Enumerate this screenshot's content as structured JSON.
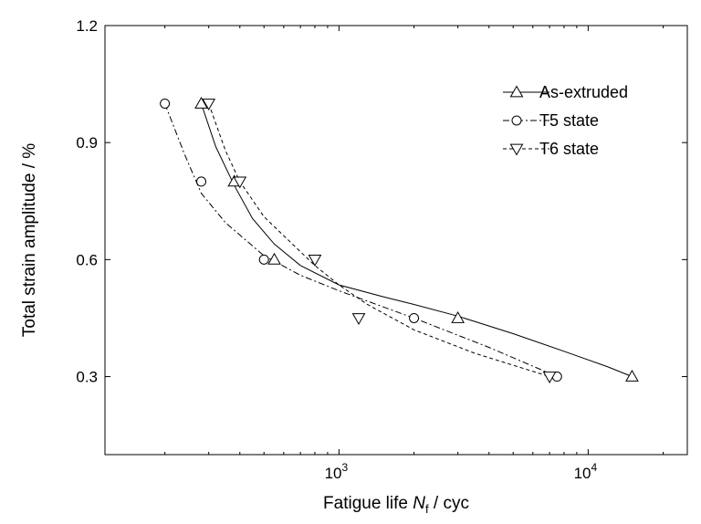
{
  "chart_data": {
    "type": "scatter",
    "title": "",
    "xlabel": {
      "prefix": "Fatigue life ",
      "symbol": "N",
      "subscript": "f",
      "suffix": " / cyc"
    },
    "ylabel": "Total strain amplitude / %",
    "x_scale": "log",
    "xlim": [
      115,
      25000
    ],
    "ylim": [
      0.1,
      1.2
    ],
    "x_ticks": [
      {
        "value": 1000,
        "base": "10",
        "exp": "3"
      },
      {
        "value": 10000,
        "base": "10",
        "exp": "4"
      }
    ],
    "y_ticks": [
      {
        "value": 0.3,
        "label": "0.3"
      },
      {
        "value": 0.6,
        "label": "0.6"
      },
      {
        "value": 0.9,
        "label": "0.9"
      },
      {
        "value": 1.2,
        "label": "1.2"
      }
    ],
    "grid": false,
    "legend_position": "top-right",
    "series": [
      {
        "name": "As-extruded",
        "marker": "triangle-up",
        "line": "solid",
        "x": [
          280,
          380,
          550,
          3000,
          15000
        ],
        "y": [
          1.0,
          0.8,
          0.6,
          0.45,
          0.3
        ],
        "fit_x": [
          280,
          320,
          380,
          450,
          550,
          700,
          1000,
          1500,
          2000,
          3000,
          5000,
          8000,
          12000,
          15000
        ],
        "fit_y": [
          1.0,
          0.89,
          0.79,
          0.705,
          0.64,
          0.585,
          0.535,
          0.505,
          0.485,
          0.455,
          0.41,
          0.365,
          0.325,
          0.3
        ]
      },
      {
        "name": "T5 state",
        "marker": "circle",
        "line": "dash-dot",
        "x": [
          200,
          280,
          500,
          2000,
          7500
        ],
        "y": [
          1.0,
          0.8,
          0.6,
          0.45,
          0.3
        ],
        "fit_x": [
          200,
          240,
          280,
          350,
          450,
          500,
          700,
          1000,
          2000,
          4000,
          7500
        ],
        "fit_y": [
          1.0,
          0.87,
          0.77,
          0.695,
          0.635,
          0.61,
          0.56,
          0.52,
          0.45,
          0.375,
          0.3
        ]
      },
      {
        "name": "T6 state",
        "marker": "triangle-down",
        "line": "dashed",
        "x": [
          300,
          400,
          800,
          1200,
          7000
        ],
        "y": [
          1.0,
          0.8,
          0.6,
          0.45,
          0.3
        ],
        "fit_x": [
          300,
          350,
          400,
          500,
          650,
          800,
          1000,
          1300,
          2000,
          3500,
          7000
        ],
        "fit_y": [
          1.0,
          0.88,
          0.8,
          0.71,
          0.64,
          0.585,
          0.535,
          0.485,
          0.42,
          0.36,
          0.3
        ]
      }
    ]
  }
}
